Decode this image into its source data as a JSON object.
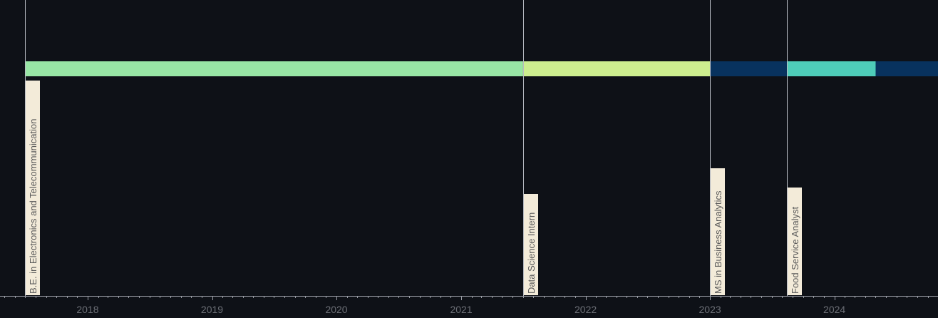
{
  "chart_data": {
    "type": "timeline",
    "x_range": [
      "2017-07-01",
      "2024-10-31"
    ],
    "ticks": [
      "2018",
      "2019",
      "2020",
      "2021",
      "2022",
      "2023",
      "2024"
    ],
    "segments": [
      {
        "start": "2017-07-01",
        "end": "2021-07-01",
        "color": "#98e6a5"
      },
      {
        "start": "2021-07-01",
        "end": "2023-01-01",
        "color": "#cdee8f"
      },
      {
        "start": "2023-01-01",
        "end": "2023-08-15",
        "color": "#08325e"
      },
      {
        "start": "2023-08-15",
        "end": "2024-05-01",
        "color": "#4ecdb9"
      },
      {
        "start": "2024-05-01",
        "end": "2024-10-31",
        "color": "#08325e"
      }
    ],
    "events": [
      {
        "date": "2017-07-01",
        "label": "B.E. in Electronics and Telecommunication"
      },
      {
        "date": "2021-07-01",
        "label": "Data Science Intern"
      },
      {
        "date": "2023-01-01",
        "label": "MS in Business Analytics"
      },
      {
        "date": "2023-08-15",
        "label": "Food Service Analyst"
      }
    ],
    "colors": {
      "background": "#0e1117",
      "axis": "#9a9ea6",
      "guide": "#b8bcc3",
      "label_box": "#f3ebd9",
      "label_text": "#5a5a5a",
      "tick_text": "#6b6e75"
    }
  }
}
